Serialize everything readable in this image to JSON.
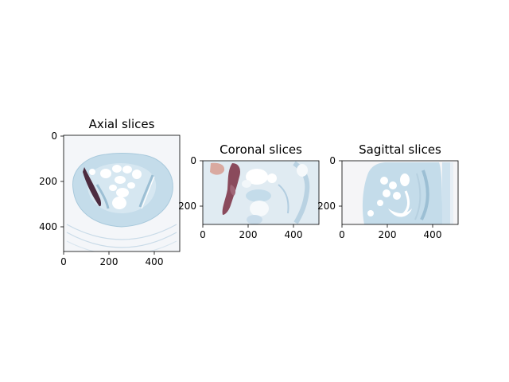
{
  "figure": {
    "panels": [
      {
        "id": "axial",
        "title": "Axial slices",
        "y_ticks": [
          "0",
          "200",
          "400"
        ],
        "x_ticks": [
          "0",
          "200",
          "400"
        ]
      },
      {
        "id": "coronal",
        "title": "Coronal slices",
        "y_ticks": [
          "0",
          "200"
        ],
        "x_ticks": [
          "0",
          "200",
          "400"
        ]
      },
      {
        "id": "sagittal",
        "title": "Sagittal slices",
        "y_ticks": [
          "0",
          "200"
        ],
        "x_ticks": [
          "0",
          "200",
          "400"
        ]
      }
    ],
    "colors": {
      "tissue": "#c6dde9",
      "tissue_edge": "#a9c8da",
      "background": "#f3f5f8",
      "bone": "#ffffff",
      "segmentation_dark": "#4c2b3f",
      "segmentation_mid": "#8a4a5c",
      "segmentation_light": "#d9a9a0"
    }
  }
}
